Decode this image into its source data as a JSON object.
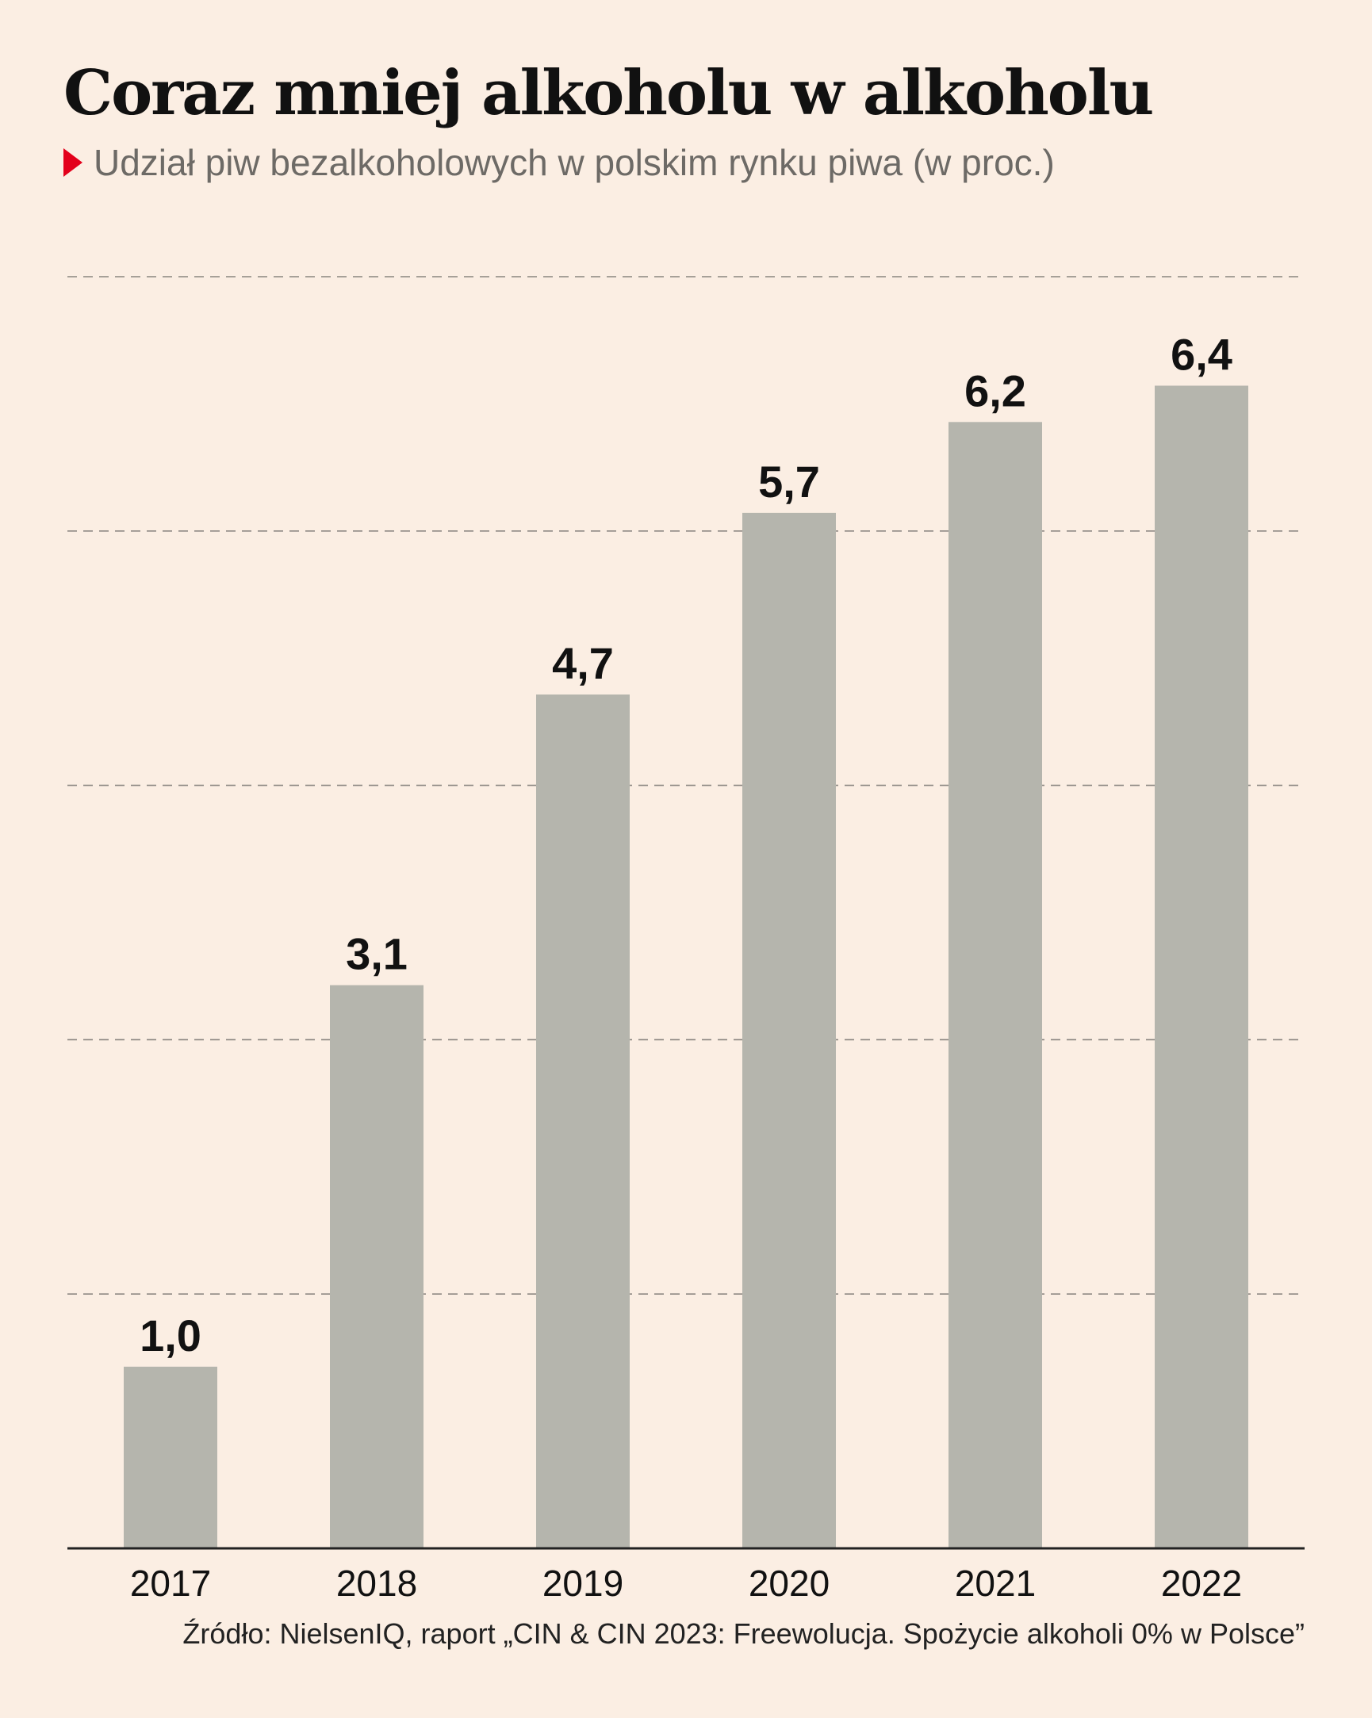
{
  "chart_data": {
    "type": "bar",
    "title": "Coraz mniej alkoholu w alkoholu",
    "subtitle": "Udział piw bezalkoholowych w polskim rynku piwa (w proc.)",
    "categories": [
      "2017",
      "2018",
      "2019",
      "2020",
      "2021",
      "2022"
    ],
    "values": [
      1.0,
      3.1,
      4.7,
      5.7,
      6.2,
      6.4
    ],
    "value_labels": [
      "1,0",
      "3,1",
      "4,7",
      "5,7",
      "6,2",
      "6,4"
    ],
    "ylim": [
      0,
      7
    ],
    "gridlines": [
      1.4,
      2.8,
      4.2,
      5.6,
      7.0
    ],
    "grid": true,
    "legend": "none",
    "source": "Źródło: NielsenIQ, raport „CIN & CIN 2023: Freewolucja. Spożycie alkoholi 0% w Polsce”"
  },
  "colors": {
    "background": "#fbeee3",
    "bar": "#b5b5ad",
    "accent": "#e3001b",
    "text": "#111111",
    "subtitle_text": "#6d6a66",
    "grid": "#8a8580",
    "axis": "#222222"
  },
  "icons": {
    "subtitle_marker": "triangle-right-icon"
  }
}
